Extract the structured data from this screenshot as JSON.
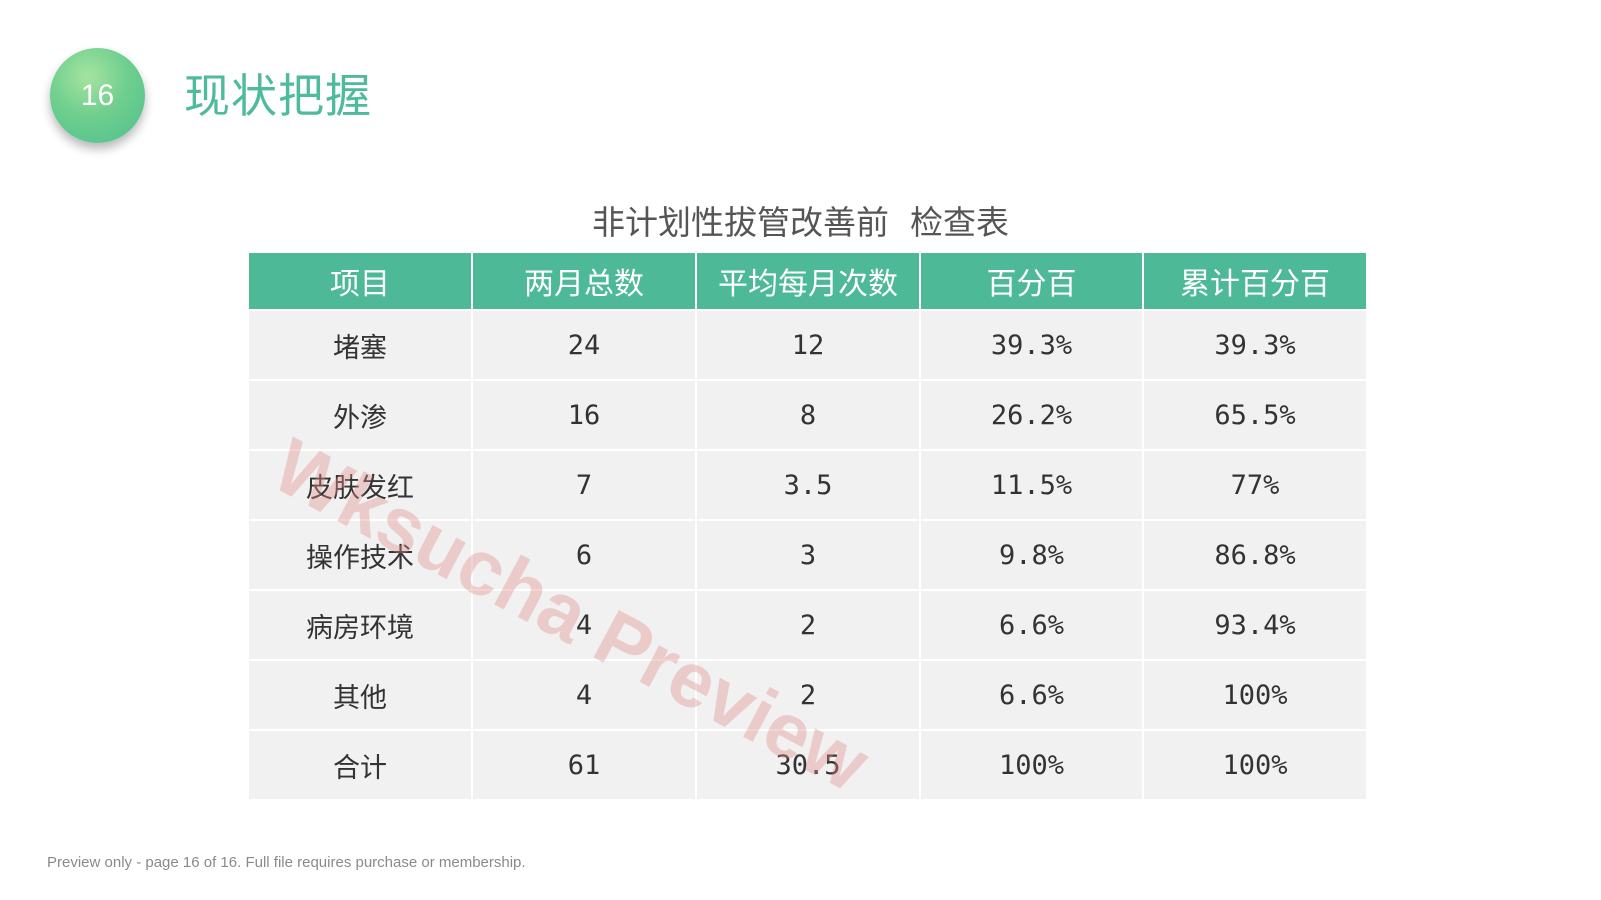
{
  "slide": {
    "page_number": "16",
    "title": "现状把握"
  },
  "table": {
    "title": "非计划性拔管改善前  检查表",
    "headers": [
      "项目",
      "两月总数",
      "平均每月次数",
      "百分百",
      "累计百分百"
    ],
    "rows": [
      [
        "堵塞",
        "24",
        "12",
        "39.3%",
        "39.3%"
      ],
      [
        "外渗",
        "16",
        "8",
        "26.2%",
        "65.5%"
      ],
      [
        "皮肤发红",
        "7",
        "3.5",
        "11.5%",
        "77%"
      ],
      [
        "操作技术",
        "6",
        "3",
        "9.8%",
        "86.8%"
      ],
      [
        "病房环境",
        "4",
        "2",
        "6.6%",
        "93.4%"
      ],
      [
        "其他",
        "4",
        "2",
        "6.6%",
        "100%"
      ],
      [
        "合计",
        "61",
        "30.5",
        "100%",
        "100%"
      ]
    ]
  },
  "watermark": "Wksucha Preview",
  "footer": "Preview only - page 16 of 16. Full file requires purchase or membership.",
  "colors": {
    "accent": "#4db996",
    "title_green": "#4dbb9c",
    "row_bg": "#f1f1f1",
    "watermark": "#e28c8c"
  }
}
